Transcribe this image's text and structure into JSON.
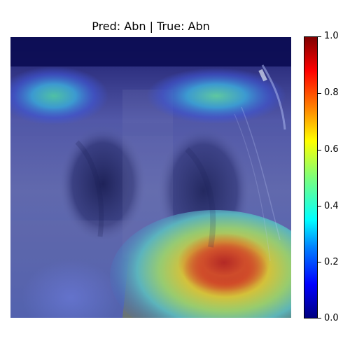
{
  "figure": {
    "title": "Pred: Abn | True: Abn"
  },
  "colorbar": {
    "ticks": [
      "0.0",
      "0.2",
      "0.4",
      "0.6",
      "0.8",
      "1.0"
    ],
    "range": [
      0.0,
      1.0
    ],
    "colormap": "jet"
  },
  "overlay": {
    "base_image": "chest x-ray",
    "colormap": "jet"
  }
}
